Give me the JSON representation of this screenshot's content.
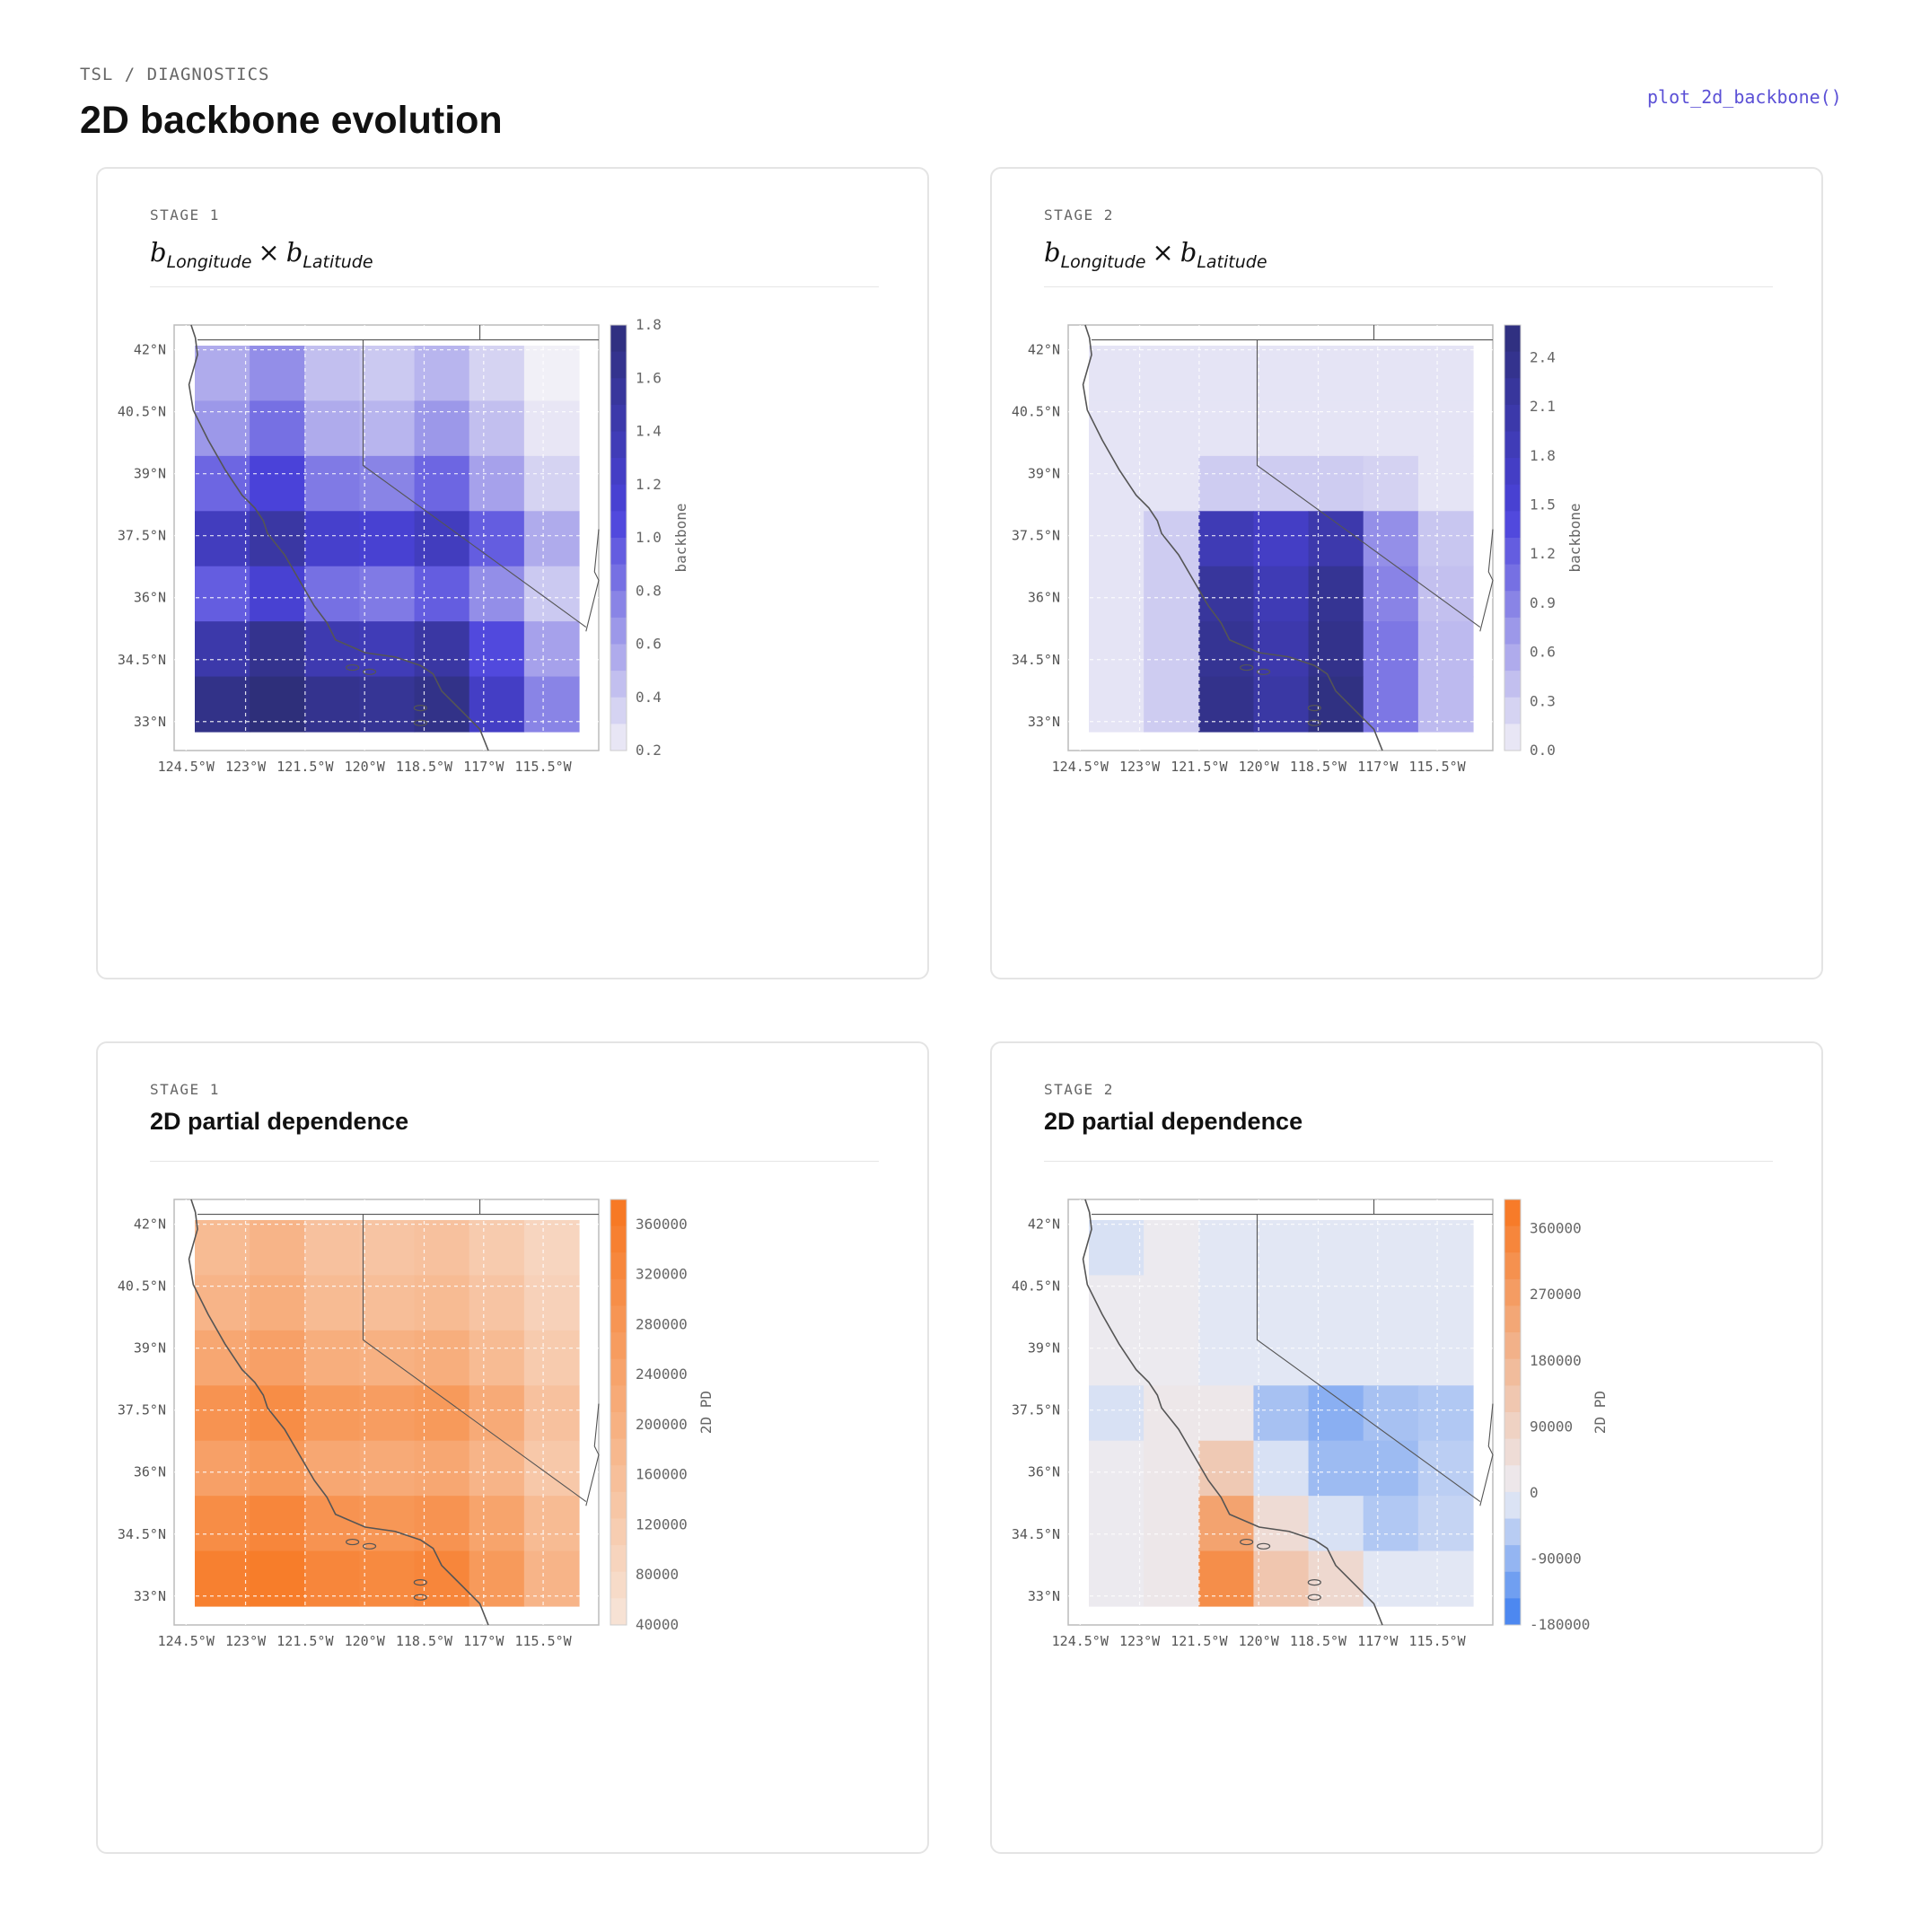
{
  "header": {
    "breadcrumb": "TSL / DIAGNOSTICS",
    "title": "2D backbone evolution",
    "function_link": "plot_2d_backbone()"
  },
  "colors": {
    "purple_max": "#2e2f7a",
    "purple_mid": "#4b43dc",
    "purple_min": "#f1f0f7",
    "orange_max": "#f7761f",
    "orange_min": "#f7e5da",
    "blue_min": "#3b7df0",
    "neutral": "#ecedf4",
    "coast": "#555555"
  },
  "panels": [
    {
      "stage": "STAGE 1",
      "title_math": {
        "a": "b",
        "a_sub": "Longitude",
        "op": "×",
        "b": "b",
        "b_sub": "Latitude"
      },
      "title": "",
      "colorbar_label": "backbone",
      "colorbar_ticks": [
        "1.8",
        "1.6",
        "1.4",
        "1.2",
        "1.0",
        "0.8",
        "0.6",
        "0.4",
        "0.2"
      ]
    },
    {
      "stage": "STAGE 2",
      "title_math": {
        "a": "b",
        "a_sub": "Longitude",
        "op": "×",
        "b": "b",
        "b_sub": "Latitude"
      },
      "title": "",
      "colorbar_label": "backbone",
      "colorbar_ticks": [
        "2.4",
        "2.1",
        "1.8",
        "1.5",
        "1.2",
        "0.9",
        "0.6",
        "0.3",
        "0.0"
      ]
    },
    {
      "stage": "STAGE 1",
      "title": "2D partial dependence",
      "colorbar_label": "2D PD",
      "colorbar_ticks": [
        "360000",
        "320000",
        "280000",
        "240000",
        "200000",
        "160000",
        "120000",
        "80000",
        "40000"
      ]
    },
    {
      "stage": "STAGE 2",
      "title": "2D partial dependence",
      "colorbar_label": "2D PD",
      "colorbar_ticks": [
        "360000",
        "270000",
        "180000",
        "90000",
        "0",
        "-90000",
        "-180000"
      ]
    }
  ],
  "chart_data": [
    {
      "type": "heatmap",
      "title": "b_Longitude × b_Latitude",
      "xlabel": "",
      "ylabel": "",
      "colorbar_label": "backbone",
      "x_ticks": [
        "124.5°W",
        "123°W",
        "121.5°W",
        "120°W",
        "118.5°W",
        "117°W",
        "115.5°W"
      ],
      "y_ticks": [
        "42°N",
        "40.5°N",
        "39°N",
        "37.5°N",
        "36°N",
        "34.5°N",
        "33°N"
      ],
      "x_range": [
        -124.8,
        -114.1
      ],
      "y_range": [
        32.3,
        42.6
      ],
      "grid": true,
      "colorbar_range": [
        0.2,
        1.8
      ],
      "field": {
        "lon_values": [
          -124.5,
          -123.0,
          -121.5,
          -120.0,
          -118.5,
          -117.0,
          -115.5
        ],
        "lat_values": [
          42.0,
          40.5,
          39.0,
          37.5,
          36.0,
          34.5,
          33.0
        ],
        "values": [
          [
            0.55,
            0.7,
            0.45,
            0.4,
            0.5,
            0.35,
            0.2
          ],
          [
            0.65,
            0.85,
            0.55,
            0.5,
            0.65,
            0.45,
            0.25
          ],
          [
            0.9,
            1.1,
            0.8,
            0.75,
            0.9,
            0.6,
            0.35
          ],
          [
            1.3,
            1.5,
            1.2,
            1.15,
            1.3,
            0.95,
            0.55
          ],
          [
            0.95,
            1.15,
            0.85,
            0.8,
            0.95,
            0.7,
            0.4
          ],
          [
            1.45,
            1.65,
            1.4,
            1.35,
            1.5,
            1.05,
            0.6
          ],
          [
            1.7,
            1.8,
            1.65,
            1.6,
            1.7,
            1.25,
            0.75
          ]
        ]
      }
    },
    {
      "type": "heatmap",
      "title": "b_Longitude × b_Latitude",
      "xlabel": "",
      "ylabel": "",
      "colorbar_label": "backbone",
      "x_ticks": [
        "124.5°W",
        "123°W",
        "121.5°W",
        "120°W",
        "118.5°W",
        "117°W",
        "115.5°W"
      ],
      "y_ticks": [
        "42°N",
        "40.5°N",
        "39°N",
        "37.5°N",
        "36°N",
        "34.5°N",
        "33°N"
      ],
      "x_range": [
        -124.8,
        -114.1
      ],
      "y_range": [
        32.3,
        42.6
      ],
      "grid": true,
      "colorbar_range": [
        0.0,
        2.6
      ],
      "field": {
        "lon_values": [
          -124.5,
          -123.0,
          -121.5,
          -120.0,
          -118.5,
          -117.0,
          -115.5
        ],
        "lat_values": [
          42.0,
          40.5,
          39.0,
          37.5,
          36.0,
          34.5,
          33.0
        ],
        "values": [
          [
            0.1,
            0.1,
            0.1,
            0.1,
            0.1,
            0.1,
            0.1
          ],
          [
            0.1,
            0.1,
            0.1,
            0.1,
            0.1,
            0.1,
            0.1
          ],
          [
            0.1,
            0.1,
            0.3,
            0.3,
            0.3,
            0.25,
            0.1
          ],
          [
            0.1,
            0.3,
            1.9,
            1.7,
            2.0,
            0.8,
            0.35
          ],
          [
            0.1,
            0.3,
            2.2,
            1.9,
            2.3,
            0.9,
            0.4
          ],
          [
            0.1,
            0.3,
            2.3,
            2.0,
            2.4,
            1.0,
            0.45
          ],
          [
            0.1,
            0.3,
            2.4,
            2.1,
            2.5,
            1.0,
            0.45
          ]
        ]
      }
    },
    {
      "type": "heatmap",
      "title": "2D partial dependence",
      "xlabel": "",
      "ylabel": "",
      "colorbar_label": "2D PD",
      "x_ticks": [
        "124.5°W",
        "123°W",
        "121.5°W",
        "120°W",
        "118.5°W",
        "117°W",
        "115.5°W"
      ],
      "y_ticks": [
        "42°N",
        "40.5°N",
        "39°N",
        "37.5°N",
        "36°N",
        "34.5°N",
        "33°N"
      ],
      "x_range": [
        -124.8,
        -114.1
      ],
      "y_range": [
        32.3,
        42.6
      ],
      "grid": true,
      "colorbar_range": [
        40000,
        380000
      ],
      "field": {
        "lon_values": [
          -124.5,
          -123.0,
          -121.5,
          -120.0,
          -118.5,
          -117.0,
          -115.5
        ],
        "lat_values": [
          42.0,
          40.5,
          39.0,
          37.5,
          36.0,
          34.5,
          33.0
        ],
        "values": [
          [
            170000,
            190000,
            150000,
            140000,
            150000,
            120000,
            90000
          ],
          [
            190000,
            210000,
            170000,
            160000,
            170000,
            140000,
            100000
          ],
          [
            230000,
            250000,
            210000,
            200000,
            210000,
            170000,
            120000
          ],
          [
            290000,
            310000,
            270000,
            260000,
            270000,
            220000,
            150000
          ],
          [
            250000,
            270000,
            230000,
            220000,
            230000,
            190000,
            130000
          ],
          [
            310000,
            330000,
            290000,
            280000,
            290000,
            240000,
            170000
          ],
          [
            350000,
            360000,
            330000,
            320000,
            330000,
            270000,
            190000
          ]
        ]
      }
    },
    {
      "type": "heatmap",
      "title": "2D partial dependence",
      "xlabel": "",
      "ylabel": "",
      "colorbar_label": "2D PD",
      "x_ticks": [
        "124.5°W",
        "123°W",
        "121.5°W",
        "120°W",
        "118.5°W",
        "117°W",
        "115.5°W"
      ],
      "y_ticks": [
        "42°N",
        "40.5°N",
        "39°N",
        "37.5°N",
        "36°N",
        "34.5°N",
        "33°N"
      ],
      "x_range": [
        -124.8,
        -114.1
      ],
      "y_range": [
        32.3,
        42.6
      ],
      "grid": true,
      "colorbar_range": [
        -180000,
        400000
      ],
      "field": {
        "lon_values": [
          -124.5,
          -123.0,
          -121.5,
          -120.0,
          -118.5,
          -117.0,
          -115.5
        ],
        "lat_values": [
          42.0,
          40.5,
          39.0,
          37.5,
          36.0,
          34.5,
          33.0
        ],
        "values": [
          [
            -20000,
            10000,
            -10000,
            -10000,
            -10000,
            -10000,
            -10000
          ],
          [
            10000,
            10000,
            -10000,
            -10000,
            -10000,
            -10000,
            -10000
          ],
          [
            10000,
            10000,
            -10000,
            -10000,
            -10000,
            -10000,
            -10000
          ],
          [
            -20000,
            20000,
            20000,
            -70000,
            -100000,
            -70000,
            -60000
          ],
          [
            10000,
            20000,
            120000,
            -20000,
            -80000,
            -80000,
            -50000
          ],
          [
            10000,
            20000,
            250000,
            60000,
            -20000,
            -60000,
            -40000
          ],
          [
            10000,
            20000,
            320000,
            130000,
            70000,
            -10000,
            -10000
          ]
        ]
      }
    }
  ]
}
